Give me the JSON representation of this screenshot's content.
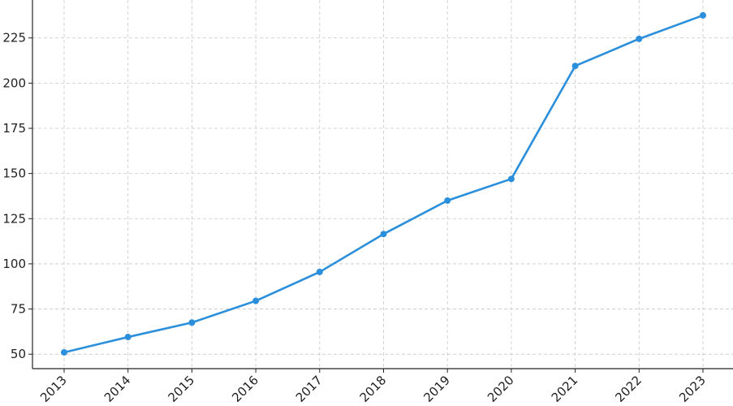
{
  "chart_data": {
    "type": "line",
    "title": "",
    "xlabel": "",
    "ylabel": "",
    "x": [
      "2013",
      "2014",
      "2015",
      "2016",
      "2017",
      "2018",
      "2019",
      "2020",
      "2021",
      "2022",
      "2023"
    ],
    "series": [
      {
        "color": "#2b8fdb",
        "values": [
          51,
          59.5,
          67.5,
          79.5,
          95.5,
          116.5,
          135,
          147,
          209.5,
          224.5,
          237.5
        ]
      }
    ],
    "yticks": [
      50,
      75,
      100,
      125,
      150,
      175,
      200,
      225
    ],
    "ylim": [
      42,
      246
    ],
    "grid": true,
    "legend": "none"
  }
}
